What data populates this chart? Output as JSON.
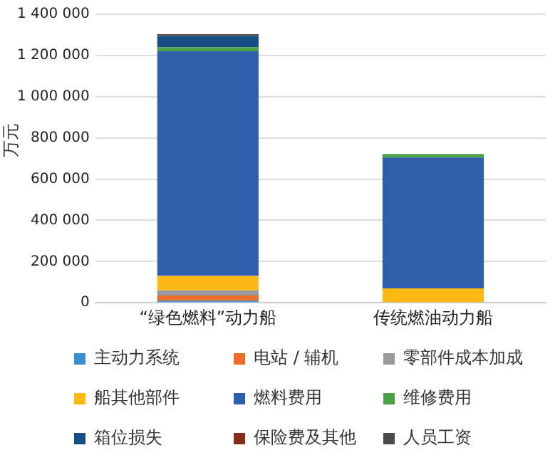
{
  "chart_data": {
    "type": "bar",
    "stacked": true,
    "ylabel": "万元",
    "categories": [
      "“绿色燃料”动力船",
      "传统燃油动力船"
    ],
    "series": [
      {
        "name": "主动力系统",
        "color": "#3a8fd0",
        "values": [
          10000,
          0
        ]
      },
      {
        "name": "电站 / 辅机",
        "color": "#ed6d2b",
        "values": [
          25000,
          0
        ]
      },
      {
        "name": "零部件成本加成",
        "color": "#9b9b9b",
        "values": [
          25000,
          0
        ]
      },
      {
        "name": "船其他部件",
        "color": "#fcb813",
        "values": [
          70000,
          70000
        ]
      },
      {
        "name": "燃料费用",
        "color": "#2f5fab",
        "values": [
          1090000,
          635000
        ]
      },
      {
        "name": "维修费用",
        "color": "#4aa146",
        "values": [
          20000,
          17000
        ]
      },
      {
        "name": "箱位损失",
        "color": "#174e85",
        "values": [
          55000,
          0
        ]
      },
      {
        "name": "保险费及其他",
        "color": "#8b2b1a",
        "values": [
          0,
          0
        ]
      },
      {
        "name": "人员工资",
        "color": "#4a4a4a",
        "values": [
          8000,
          0
        ]
      }
    ],
    "ylim": [
      0,
      1400000
    ],
    "yticks": [
      {
        "value": 0,
        "label": "0"
      },
      {
        "value": 200000,
        "label": "200 000"
      },
      {
        "value": 400000,
        "label": "400 000"
      },
      {
        "value": 600000,
        "label": "600 000"
      },
      {
        "value": 800000,
        "label": "800 000"
      },
      {
        "value": 1000000,
        "label": "1 000 000"
      },
      {
        "value": 1200000,
        "label": "1 200 000"
      },
      {
        "value": 1400000,
        "label": "1 400 000"
      }
    ],
    "grid": "y",
    "legend": "bottom"
  }
}
